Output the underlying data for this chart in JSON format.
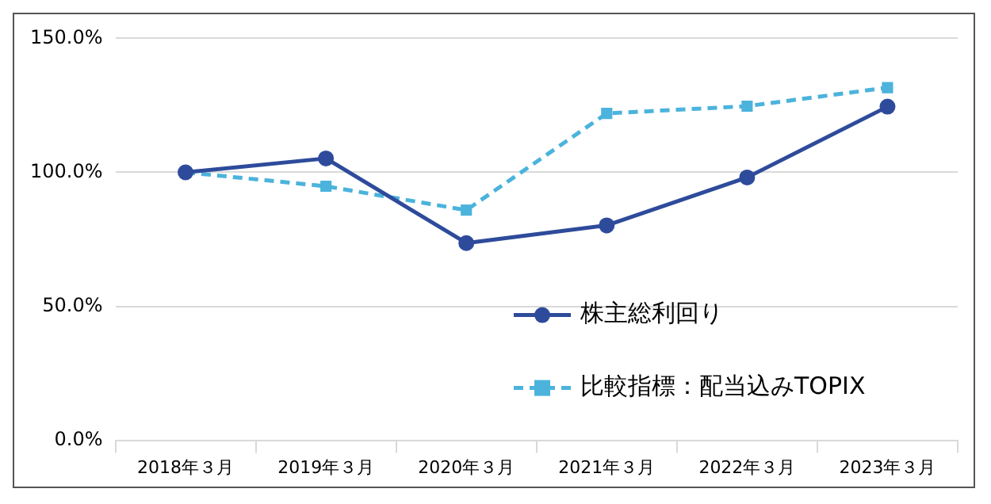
{
  "chart_data": {
    "type": "line",
    "categories": [
      "2018年３月",
      "2019年３月",
      "2020年３月",
      "2021年３月",
      "2022年３月",
      "2023年３月"
    ],
    "series": [
      {
        "name": "株主総利回り",
        "color": "#2e4b9b",
        "marker": "circle",
        "line_style": "solid",
        "values": [
          100,
          105.2,
          73.6,
          80.2,
          98.1,
          124.5
        ]
      },
      {
        "name": "比較指標：配当込みTOPIX",
        "color": "#4bb3dc",
        "marker": "square",
        "line_style": "dashed",
        "values": [
          100,
          94.8,
          85.9,
          122.0,
          124.7,
          131.6
        ]
      }
    ],
    "ylim": [
      0,
      150
    ],
    "yticks": [
      {
        "value": 0,
        "label": "0.0%"
      },
      {
        "value": 50,
        "label": "50.0%"
      },
      {
        "value": 100,
        "label": "100.0%"
      },
      {
        "value": 150,
        "label": "150.0%"
      }
    ],
    "grid": "y",
    "legend": "bottom right"
  }
}
